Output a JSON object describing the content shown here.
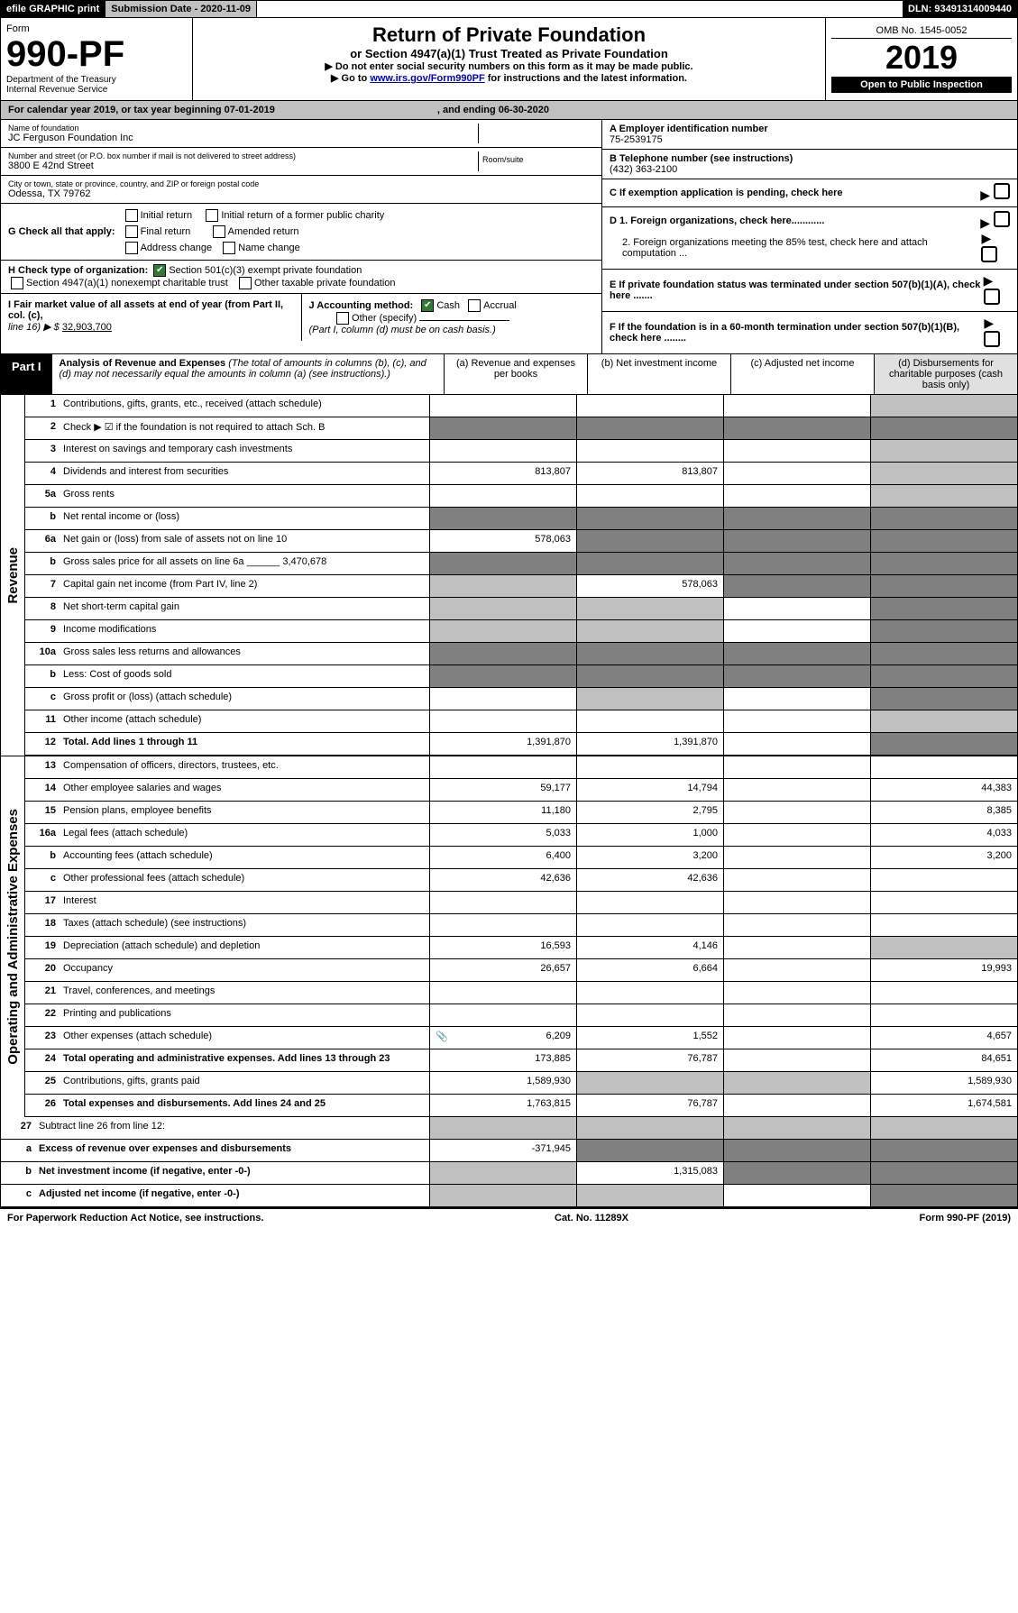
{
  "hdr": {
    "efile": "efile GRAPHIC print",
    "sub_date_lbl": "Submission Date - 2020-11-09",
    "dln": "DLN: 93491314009440"
  },
  "form": {
    "word_form": "Form",
    "num": "990-PF",
    "dept": "Department of the Treasury",
    "irs": "Internal Revenue Service",
    "title": "Return of Private Foundation",
    "subtitle": "or Section 4947(a)(1) Trust Treated as Private Foundation",
    "warn1": "▶ Do not enter social security numbers on this form as it may be made public.",
    "warn2_pre": "▶ Go to ",
    "warn2_link": "www.irs.gov/Form990PF",
    "warn2_post": " for instructions and the latest information.",
    "omb": "OMB No. 1545-0052",
    "year": "2019",
    "open_pub": "Open to Public Inspection"
  },
  "cal": {
    "text_a": "For calendar year 2019, or tax year beginning 07-01-2019",
    "text_b": ", and ending 06-30-2020"
  },
  "id": {
    "name_lbl": "Name of foundation",
    "name": "JC Ferguson Foundation Inc",
    "addr_lbl": "Number and street (or P.O. box number if mail is not delivered to street address)",
    "addr": "3800 E 42nd Street",
    "room_lbl": "Room/suite",
    "city_lbl": "City or town, state or province, country, and ZIP or foreign postal code",
    "city": "Odessa, TX  79762",
    "ein_lbl": "A Employer identification number",
    "ein": "75-2539175",
    "tel_lbl": "B Telephone number (see instructions)",
    "tel": "(432) 363-2100",
    "c_lbl": "C If exemption application is pending, check here",
    "d1": "D 1. Foreign organizations, check here............",
    "d2": "2. Foreign organizations meeting the 85% test, check here and attach computation ...",
    "e": "E If private foundation status was terminated under section 507(b)(1)(A), check here .......",
    "f": "F If the foundation is in a 60-month termination under section 507(b)(1)(B), check here ........"
  },
  "g": {
    "lbl": "G Check all that apply:",
    "o1": "Initial return",
    "o2": "Initial return of a former public charity",
    "o3": "Final return",
    "o4": "Amended return",
    "o5": "Address change",
    "o6": "Name change"
  },
  "h": {
    "lbl": "H Check type of organization:",
    "o1": "Section 501(c)(3) exempt private foundation",
    "o2": "Section 4947(a)(1) nonexempt charitable trust",
    "o3": "Other taxable private foundation"
  },
  "i": {
    "lbl": "I Fair market value of all assets at end of year (from Part II, col. (c),",
    "line16": "line 16) ▶ $",
    "val": "32,903,700"
  },
  "j": {
    "lbl": "J Accounting method:",
    "cash": "Cash",
    "accrual": "Accrual",
    "other": "Other (specify)",
    "note": "(Part I, column (d) must be on cash basis.)"
  },
  "part1": {
    "tab": "Part I",
    "title": "Analysis of Revenue and Expenses",
    "note": "(The total of amounts in columns (b), (c), and (d) may not necessarily equal the amounts in column (a) (see instructions).)",
    "col_a": "(a)   Revenue and expenses per books",
    "col_b": "(b)   Net investment income",
    "col_c": "(c)   Adjusted net income",
    "col_d": "(d)   Disbursements for charitable purposes (cash basis only)"
  },
  "side": {
    "rev": "Revenue",
    "exp": "Operating and Administrative Expenses"
  },
  "rows": [
    {
      "n": "1",
      "l": "Contributions, gifts, grants, etc., received (attach schedule)",
      "a": "",
      "b": "",
      "c": "",
      "d": "",
      "grey_d": true
    },
    {
      "n": "2",
      "l": "Check ▶ ☑ if the foundation is not required to attach Sch. B",
      "a": "",
      "b": "",
      "c": "",
      "d": "",
      "dark": true
    },
    {
      "n": "3",
      "l": "Interest on savings and temporary cash investments",
      "a": "",
      "b": "",
      "c": "",
      "d": "",
      "grey_d": true
    },
    {
      "n": "4",
      "l": "Dividends and interest from securities",
      "a": "813,807",
      "b": "813,807",
      "c": "",
      "d": "",
      "grey_d": true
    },
    {
      "n": "5a",
      "l": "Gross rents",
      "a": "",
      "b": "",
      "c": "",
      "d": "",
      "grey_d": true
    },
    {
      "n": "b",
      "l": "Net rental income or (loss)",
      "a": "",
      "b": "",
      "c": "",
      "d": "",
      "dark": true
    },
    {
      "n": "6a",
      "l": "Net gain or (loss) from sale of assets not on line 10",
      "a": "578,063",
      "b": "",
      "c": "",
      "d": "",
      "dark_bcd": true
    },
    {
      "n": "b",
      "l": "Gross sales price for all assets on line 6a ______ 3,470,678",
      "a": "",
      "b": "",
      "c": "",
      "d": "",
      "dark": true
    },
    {
      "n": "7",
      "l": "Capital gain net income (from Part IV, line 2)",
      "a": "",
      "b": "578,063",
      "c": "",
      "d": "",
      "grey_a": true,
      "dark_cd": true
    },
    {
      "n": "8",
      "l": "Net short-term capital gain",
      "a": "",
      "b": "",
      "c": "",
      "d": "",
      "grey_ab": true,
      "dark_d": true
    },
    {
      "n": "9",
      "l": "Income modifications",
      "a": "",
      "b": "",
      "c": "",
      "d": "",
      "grey_ab": true,
      "dark_d": true
    },
    {
      "n": "10a",
      "l": "Gross sales less returns and allowances",
      "a": "",
      "b": "",
      "c": "",
      "d": "",
      "dark": true
    },
    {
      "n": "b",
      "l": "Less: Cost of goods sold",
      "a": "",
      "b": "",
      "c": "",
      "d": "",
      "dark": true
    },
    {
      "n": "c",
      "l": "Gross profit or (loss) (attach schedule)",
      "a": "",
      "b": "",
      "c": "",
      "d": "",
      "grey_b": true,
      "dark_d": true
    },
    {
      "n": "11",
      "l": "Other income (attach schedule)",
      "a": "",
      "b": "",
      "c": "",
      "d": "",
      "grey_d": true
    },
    {
      "n": "12",
      "l": "Total. Add lines 1 through 11",
      "a": "1,391,870",
      "b": "1,391,870",
      "c": "",
      "d": "",
      "bold": true,
      "dark_d": true
    }
  ],
  "exp_rows": [
    {
      "n": "13",
      "l": "Compensation of officers, directors, trustees, etc.",
      "a": "",
      "b": "",
      "c": "",
      "d": ""
    },
    {
      "n": "14",
      "l": "Other employee salaries and wages",
      "a": "59,177",
      "b": "14,794",
      "c": "",
      "d": "44,383"
    },
    {
      "n": "15",
      "l": "Pension plans, employee benefits",
      "a": "11,180",
      "b": "2,795",
      "c": "",
      "d": "8,385"
    },
    {
      "n": "16a",
      "l": "Legal fees (attach schedule)",
      "a": "5,033",
      "b": "1,000",
      "c": "",
      "d": "4,033"
    },
    {
      "n": "b",
      "l": "Accounting fees (attach schedule)",
      "a": "6,400",
      "b": "3,200",
      "c": "",
      "d": "3,200"
    },
    {
      "n": "c",
      "l": "Other professional fees (attach schedule)",
      "a": "42,636",
      "b": "42,636",
      "c": "",
      "d": ""
    },
    {
      "n": "17",
      "l": "Interest",
      "a": "",
      "b": "",
      "c": "",
      "d": ""
    },
    {
      "n": "18",
      "l": "Taxes (attach schedule) (see instructions)",
      "a": "",
      "b": "",
      "c": "",
      "d": ""
    },
    {
      "n": "19",
      "l": "Depreciation (attach schedule) and depletion",
      "a": "16,593",
      "b": "4,146",
      "c": "",
      "d": "",
      "grey_d": true
    },
    {
      "n": "20",
      "l": "Occupancy",
      "a": "26,657",
      "b": "6,664",
      "c": "",
      "d": "19,993"
    },
    {
      "n": "21",
      "l": "Travel, conferences, and meetings",
      "a": "",
      "b": "",
      "c": "",
      "d": ""
    },
    {
      "n": "22",
      "l": "Printing and publications",
      "a": "",
      "b": "",
      "c": "",
      "d": ""
    },
    {
      "n": "23",
      "l": "Other expenses (attach schedule)",
      "a": "6,209",
      "b": "1,552",
      "c": "",
      "d": "4,657",
      "icon": true
    },
    {
      "n": "24",
      "l": "Total operating and administrative expenses. Add lines 13 through 23",
      "a": "173,885",
      "b": "76,787",
      "c": "",
      "d": "84,651",
      "bold": true
    },
    {
      "n": "25",
      "l": "Contributions, gifts, grants paid",
      "a": "1,589,930",
      "b": "",
      "c": "",
      "d": "1,589,930",
      "grey_bc": true
    },
    {
      "n": "26",
      "l": "Total expenses and disbursements. Add lines 24 and 25",
      "a": "1,763,815",
      "b": "76,787",
      "c": "",
      "d": "1,674,581",
      "bold": true
    }
  ],
  "line27": {
    "n": "27",
    "l": "Subtract line 26 from line 12:",
    "a_l": "Excess of revenue over expenses and disbursements",
    "a_v": "-371,945",
    "b_l": "Net investment income (if negative, enter -0-)",
    "b_v": "1,315,083",
    "c_l": "Adjusted net income (if negative, enter -0-)"
  },
  "foot": {
    "pra": "For Paperwork Reduction Act Notice, see instructions.",
    "cat": "Cat. No. 11289X",
    "form": "Form 990-PF (2019)"
  },
  "colors": {
    "header_bg": "#000000",
    "grey": "#c0c0c0",
    "dark": "#808080",
    "link": "#0000cc",
    "check": "#2e7d32"
  }
}
